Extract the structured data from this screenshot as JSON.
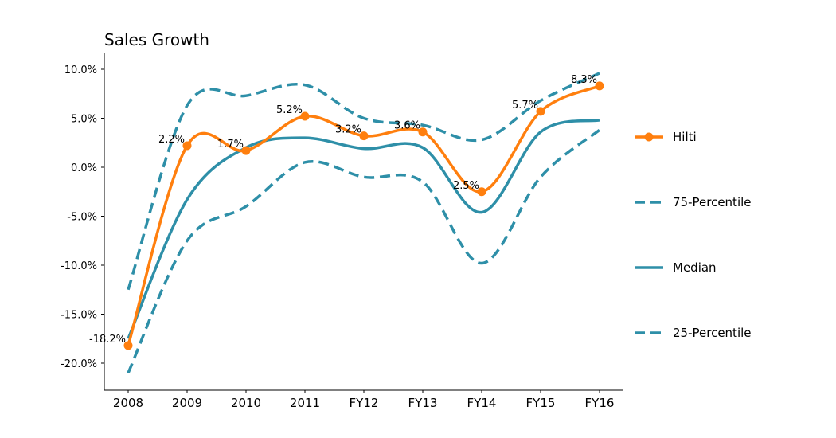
{
  "chart_data": {
    "type": "line",
    "title": "Sales Growth",
    "xlabel": "",
    "ylabel": "",
    "categories": [
      "2008",
      "2009",
      "2010",
      "2011",
      "FY12",
      "FY13",
      "FY14",
      "FY15",
      "FY16"
    ],
    "ylim": [
      -23.0,
      11.5
    ],
    "yticks": [
      10,
      5,
      0,
      -5,
      -10,
      -15,
      -20
    ],
    "ytick_labels": [
      "10.0%",
      "5.0%",
      "0.0%",
      "-5.0%",
      "-10.0%",
      "-15.0%",
      "-20.0%"
    ],
    "grid": false,
    "legend_position": "right",
    "series": [
      {
        "name": "Hilti",
        "style": "solid-markers",
        "color": "#ff7f0e",
        "values": [
          -18.2,
          2.2,
          1.7,
          5.2,
          3.2,
          3.6,
          -2.5,
          5.7,
          8.3
        ],
        "labels": [
          "-18.2%",
          "2.2%",
          "1.7%",
          "5.2%",
          "3.2%",
          "3.6%",
          "-2.5%",
          "5.7%",
          "8.3%"
        ]
      },
      {
        "name": "75-Percentile",
        "style": "dashed",
        "color": "#2e8fa8",
        "values": [
          -12.5,
          6.3,
          7.3,
          8.4,
          5.0,
          4.3,
          2.8,
          6.8,
          9.6
        ]
      },
      {
        "name": "Median",
        "style": "solid",
        "color": "#2e8fa8",
        "values": [
          -17.5,
          -3.3,
          2.0,
          3.0,
          1.9,
          2.0,
          -4.6,
          3.6,
          4.8
        ]
      },
      {
        "name": "25-Percentile",
        "style": "dashed",
        "color": "#2e8fa8",
        "values": [
          -21.0,
          -7.5,
          -4.0,
          0.5,
          -1.0,
          -1.5,
          -9.8,
          -1.0,
          3.8
        ]
      }
    ]
  }
}
